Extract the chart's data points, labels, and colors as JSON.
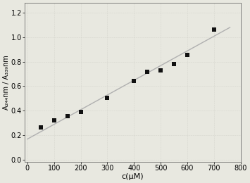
{
  "x_data": [
    50,
    100,
    150,
    200,
    300,
    400,
    450,
    500,
    550,
    600,
    700
  ],
  "y_data": [
    0.265,
    0.32,
    0.355,
    0.39,
    0.505,
    0.645,
    0.72,
    0.73,
    0.78,
    0.855,
    1.06
  ],
  "fit_x": [
    0,
    760
  ],
  "fit_y": [
    0.168,
    1.08
  ],
  "xlabel": "c(μM)",
  "ylabel": "A₂₄₄nm / A₃₃₉nm",
  "xlim": [
    -10,
    800
  ],
  "ylim": [
    -0.02,
    1.28
  ],
  "xticks": [
    0,
    100,
    200,
    300,
    400,
    500,
    600,
    700,
    800
  ],
  "yticks": [
    0.0,
    0.2,
    0.4,
    0.6,
    0.8,
    1.0,
    1.2
  ],
  "marker_color": "#111111",
  "line_color": "#b0b0b0",
  "bg_color": "#e8e8e0",
  "grid_color": "#c8c8c0",
  "marker_size": 5,
  "line_width": 1.0,
  "xlabel_fontsize": 8,
  "ylabel_fontsize": 7,
  "tick_fontsize": 7
}
